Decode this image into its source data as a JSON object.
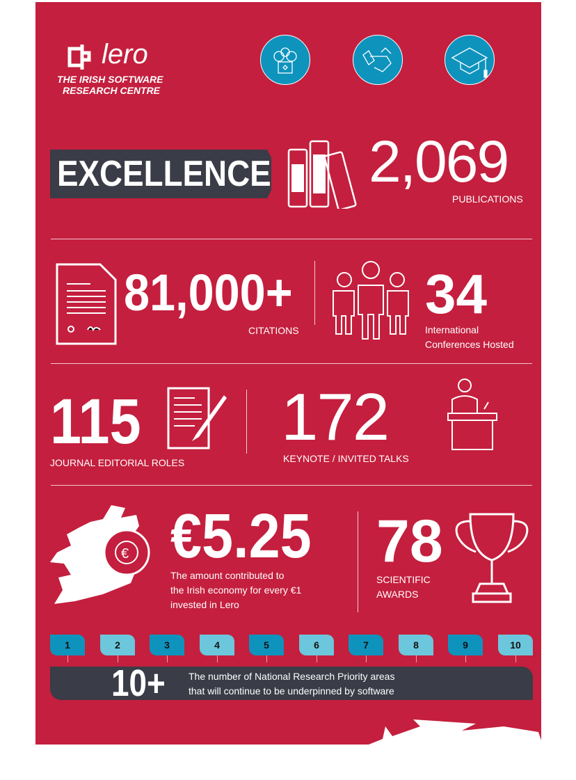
{
  "logo": {
    "name": "lero",
    "tagline1": "THE IRISH SOFTWARE",
    "tagline2": "RESEARCH CENTRE"
  },
  "icons": [
    "people-innovation-icon",
    "handshake-icon",
    "graduation-cap-icon"
  ],
  "banner": {
    "label": "EXCELLENCE"
  },
  "publications": {
    "value": "2,069",
    "label": "PUBLICATIONS"
  },
  "citations": {
    "value": "81,000+",
    "label": "CITATIONS"
  },
  "conferences": {
    "value": "34",
    "label1": "International",
    "label2": "Conferences Hosted"
  },
  "editorial": {
    "value": "115",
    "label": "JOURNAL EDITORIAL ROLES"
  },
  "talks": {
    "value": "172",
    "label": "KEYNOTE / INVITED TALKS"
  },
  "economy": {
    "value": "€5.25",
    "line1": "The amount contributed to",
    "line2": "the Irish economy for every €1",
    "line3": "invested in Lero"
  },
  "awards": {
    "value": "78",
    "label1": "SCIENTIFIC",
    "label2": "AWARDS"
  },
  "priority": {
    "tabs": [
      "1",
      "2",
      "3",
      "4",
      "5",
      "6",
      "7",
      "8",
      "9",
      "10"
    ],
    "value": "10+",
    "line1": "The number of National Research Priority areas",
    "line2": "that will continue to be underpinned by software"
  },
  "colors": {
    "red": "#c41f3e",
    "dark": "#3a3c47",
    "blue": "#0e93bd",
    "light_blue": "#6cc6dc"
  }
}
